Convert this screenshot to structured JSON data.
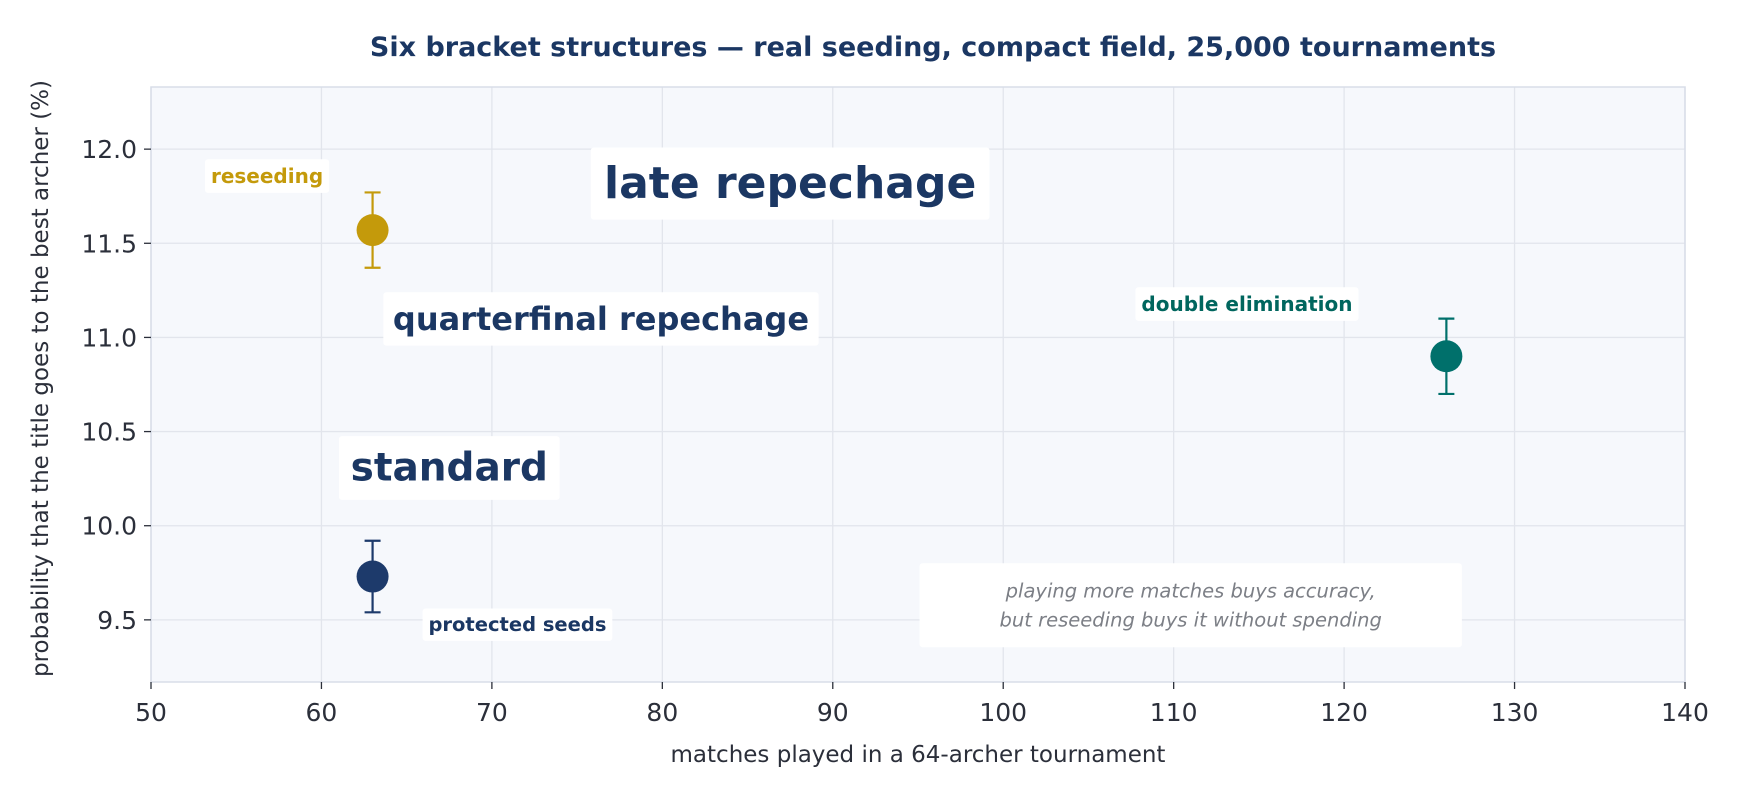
{
  "chart_data": {
    "type": "scatter",
    "title": "Six bracket structures — real seeding, compact field, 25,000 tournaments",
    "xlabel": "matches played in a 64-archer tournament",
    "ylabel": "probability that the title goes to the best archer (%)",
    "xlim": [
      50,
      140
    ],
    "ylim": [
      9.17,
      12.33
    ],
    "xticks": [
      "50",
      "60",
      "70",
      "80",
      "90",
      "100",
      "110",
      "120",
      "130",
      "140"
    ],
    "yticks": [
      "9.5",
      "10.0",
      "10.5",
      "11.0",
      "11.5",
      "12.0"
    ],
    "grid": true,
    "points": [
      {
        "x": 63,
        "y": 11.57,
        "err_low": 11.37,
        "err_high": 11.77,
        "color": "#c49a0b"
      },
      {
        "x": 63,
        "y": 9.73,
        "err_low": 9.54,
        "err_high": 9.92,
        "color": "#1d3a6b"
      },
      {
        "x": 126,
        "y": 10.9,
        "err_low": 10.7,
        "err_high": 11.1,
        "color": "#00706b"
      }
    ],
    "annotations": [
      {
        "text": "reseeding",
        "x": 60.1,
        "y": 11.82,
        "size": 20,
        "color": "#c49a0b",
        "anchor": "end"
      },
      {
        "text": "late repechage",
        "x": 87.5,
        "y": 11.74,
        "size": 44,
        "color": "#1b3763",
        "anchor": "middle"
      },
      {
        "text": "quarterfinal repechage",
        "x": 76.4,
        "y": 11.04,
        "size": 32,
        "color": "#1b3763",
        "anchor": "middle"
      },
      {
        "text": "double elimination",
        "x": 114.3,
        "y": 11.14,
        "size": 20,
        "color": "#00665e",
        "anchor": "middle"
      },
      {
        "text": "standard",
        "x": 67.5,
        "y": 10.24,
        "size": 39,
        "color": "#1b3763",
        "anchor": "middle"
      },
      {
        "text": "protected seeds",
        "x": 71.5,
        "y": 9.44,
        "size": 19.5,
        "color": "#1b3763",
        "anchor": "middle"
      }
    ],
    "note": {
      "lines": [
        "playing more matches buys accuracy,",
        "but reseeding buys it without spending"
      ],
      "x": 111,
      "y": 9.62
    }
  }
}
